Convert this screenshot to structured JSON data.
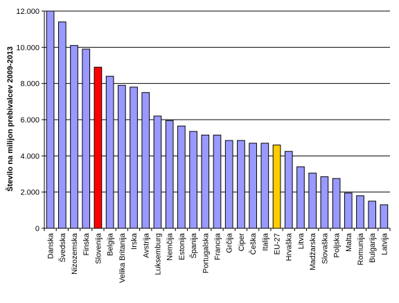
{
  "chart_data": {
    "type": "bar",
    "title": "",
    "xlabel": "",
    "ylabel": "Število na milijon prebivalcev 2009-2013",
    "ylim": [
      0,
      12000
    ],
    "yticks": [
      0,
      2000,
      4000,
      6000,
      8000,
      10000,
      12000
    ],
    "ytick_labels": [
      "0",
      "2.000",
      "4.000",
      "6.000",
      "8.000",
      "10.000",
      "12.000"
    ],
    "grid": true,
    "legend": "none",
    "categories": [
      "Danska",
      "Švedska",
      "Nizozemska",
      "Finska",
      "Slovenija",
      "Belgija",
      "Velika Britanija",
      "Irska",
      "Avstrija",
      "Luksemburg",
      "Nemčija",
      "Estonija",
      "Španija",
      "Portugalska",
      "Francija",
      "Grčija",
      "Ciper",
      "Češka",
      "Italija",
      "EU-27",
      "Hrvaška",
      "Litva",
      "Madžarska",
      "Slovaška",
      "Poljska",
      "Malta",
      "Romunija",
      "Bulgarija",
      "Latvija"
    ],
    "values": [
      12000,
      11400,
      10100,
      9900,
      8900,
      8400,
      7900,
      7800,
      7500,
      6200,
      5950,
      5650,
      5350,
      5150,
      5150,
      4850,
      4850,
      4700,
      4700,
      4600,
      4250,
      3400,
      3050,
      2850,
      2750,
      1950,
      1800,
      1500,
      1300
    ],
    "colors": {
      "default": "#9999ff",
      "highlight_red": "#ff0000",
      "highlight_gold": "#ffcc00",
      "highlight_map": {
        "Slovenija": "#ff0000",
        "EU-27": "#ffcc00"
      }
    }
  }
}
